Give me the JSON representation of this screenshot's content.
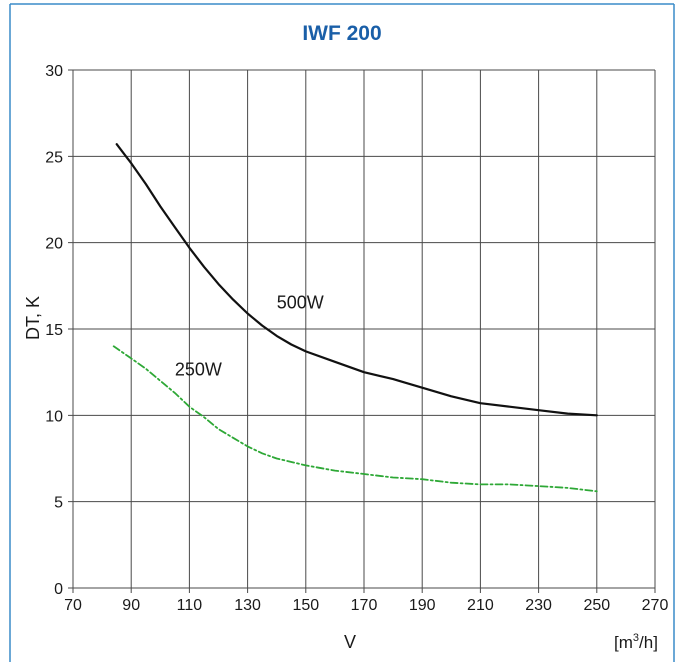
{
  "colors": {
    "frame": "#3a8bc8",
    "title": "#1a5fa8",
    "grid": "#4a4a4a",
    "series_500w": "#111111",
    "series_250w": "#2ea836"
  },
  "chart_data": {
    "type": "line",
    "title": "IWF 200",
    "xlabel": "V",
    "xunit": {
      "prefix": "[m",
      "sup": "3",
      "suffix": "/h]"
    },
    "ylabel": "DT, K",
    "xlim": [
      70,
      270
    ],
    "ylim": [
      0,
      30
    ],
    "xticks": [
      70,
      90,
      110,
      130,
      150,
      170,
      190,
      210,
      230,
      250,
      270
    ],
    "yticks": [
      0,
      5,
      10,
      15,
      20,
      25,
      30
    ],
    "grid": true,
    "series": [
      {
        "name": "500W",
        "style": "solid",
        "color": "#111111",
        "label_at": [
          140,
          16.2
        ],
        "x": [
          85,
          90,
          95,
          100,
          105,
          110,
          115,
          120,
          125,
          130,
          135,
          140,
          145,
          150,
          160,
          170,
          180,
          190,
          200,
          210,
          220,
          230,
          240,
          250
        ],
        "y": [
          25.7,
          24.6,
          23.4,
          22.1,
          20.9,
          19.7,
          18.6,
          17.6,
          16.7,
          15.9,
          15.2,
          14.6,
          14.1,
          13.7,
          13.1,
          12.5,
          12.1,
          11.6,
          11.1,
          10.7,
          10.5,
          10.3,
          10.1,
          10.0
        ]
      },
      {
        "name": "250W",
        "style": "dashdot",
        "color": "#2ea836",
        "label_at": [
          105,
          12.3
        ],
        "x": [
          84,
          90,
          95,
          100,
          105,
          110,
          115,
          120,
          125,
          130,
          135,
          140,
          150,
          160,
          170,
          180,
          190,
          200,
          210,
          220,
          230,
          240,
          250
        ],
        "y": [
          14.0,
          13.3,
          12.7,
          12.0,
          11.3,
          10.5,
          9.9,
          9.2,
          8.7,
          8.2,
          7.8,
          7.5,
          7.1,
          6.8,
          6.6,
          6.4,
          6.3,
          6.1,
          6.0,
          6.0,
          5.9,
          5.8,
          5.6
        ]
      }
    ]
  }
}
